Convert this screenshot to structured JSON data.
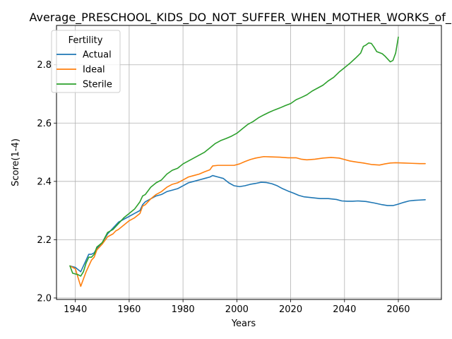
{
  "chart_data": {
    "type": "line",
    "title": "Average_PRESCHOOL_KIDS_DO_NOT_SUFFER_WHEN_MOTHER_WORKS_of_Ma",
    "xlabel": "Years",
    "ylabel": "Score(1-4)",
    "xlim": [
      1933,
      2076
    ],
    "ylim": [
      1.995,
      2.935
    ],
    "xticks": [
      1940,
      1960,
      1980,
      2000,
      2020,
      2040,
      2060
    ],
    "yticks": [
      2.0,
      2.2,
      2.4,
      2.6,
      2.8
    ],
    "grid": true,
    "legend": {
      "title": "Fertility",
      "placement": "top-left"
    },
    "series": [
      {
        "name": "Actual",
        "color": "#1f77b4",
        "points": [
          [
            1938,
            2.11
          ],
          [
            1940,
            2.105
          ],
          [
            1942,
            2.09
          ],
          [
            1943,
            2.11
          ],
          [
            1944,
            2.13
          ],
          [
            1945,
            2.15
          ],
          [
            1946,
            2.15
          ],
          [
            1947,
            2.155
          ],
          [
            1948,
            2.17
          ],
          [
            1950,
            2.19
          ],
          [
            1952,
            2.22
          ],
          [
            1954,
            2.24
          ],
          [
            1956,
            2.26
          ],
          [
            1958,
            2.27
          ],
          [
            1960,
            2.28
          ],
          [
            1962,
            2.29
          ],
          [
            1964,
            2.3
          ],
          [
            1965,
            2.32
          ],
          [
            1966,
            2.33
          ],
          [
            1968,
            2.34
          ],
          [
            1970,
            2.35
          ],
          [
            1972,
            2.355
          ],
          [
            1974,
            2.365
          ],
          [
            1976,
            2.37
          ],
          [
            1978,
            2.375
          ],
          [
            1980,
            2.385
          ],
          [
            1982,
            2.395
          ],
          [
            1984,
            2.4
          ],
          [
            1986,
            2.405
          ],
          [
            1988,
            2.41
          ],
          [
            1990,
            2.415
          ],
          [
            1991,
            2.42
          ],
          [
            1993,
            2.415
          ],
          [
            1995,
            2.41
          ],
          [
            1997,
            2.395
          ],
          [
            1999,
            2.385
          ],
          [
            2001,
            2.382
          ],
          [
            2003,
            2.385
          ],
          [
            2005,
            2.39
          ],
          [
            2007,
            2.393
          ],
          [
            2009,
            2.397
          ],
          [
            2011,
            2.396
          ],
          [
            2013,
            2.392
          ],
          [
            2015,
            2.385
          ],
          [
            2017,
            2.375
          ],
          [
            2019,
            2.367
          ],
          [
            2021,
            2.36
          ],
          [
            2023,
            2.352
          ],
          [
            2025,
            2.347
          ],
          [
            2028,
            2.344
          ],
          [
            2031,
            2.341
          ],
          [
            2034,
            2.341
          ],
          [
            2037,
            2.338
          ],
          [
            2039,
            2.333
          ],
          [
            2041,
            2.332
          ],
          [
            2043,
            2.332
          ],
          [
            2045,
            2.333
          ],
          [
            2048,
            2.331
          ],
          [
            2051,
            2.326
          ],
          [
            2054,
            2.32
          ],
          [
            2056,
            2.317
          ],
          [
            2058,
            2.317
          ],
          [
            2060,
            2.322
          ],
          [
            2062,
            2.328
          ],
          [
            2064,
            2.333
          ],
          [
            2066,
            2.335
          ],
          [
            2068,
            2.336
          ],
          [
            2070,
            2.337
          ]
        ]
      },
      {
        "name": "Ideal",
        "color": "#ff7f0e",
        "points": [
          [
            1938,
            2.11
          ],
          [
            1940,
            2.1
          ],
          [
            1941,
            2.07
          ],
          [
            1942,
            2.04
          ],
          [
            1943,
            2.065
          ],
          [
            1944,
            2.09
          ],
          [
            1946,
            2.13
          ],
          [
            1947,
            2.14
          ],
          [
            1948,
            2.165
          ],
          [
            1950,
            2.185
          ],
          [
            1952,
            2.21
          ],
          [
            1954,
            2.22
          ],
          [
            1955,
            2.23
          ],
          [
            1956,
            2.235
          ],
          [
            1958,
            2.25
          ],
          [
            1960,
            2.265
          ],
          [
            1962,
            2.275
          ],
          [
            1964,
            2.29
          ],
          [
            1965,
            2.315
          ],
          [
            1966,
            2.32
          ],
          [
            1968,
            2.34
          ],
          [
            1970,
            2.355
          ],
          [
            1972,
            2.365
          ],
          [
            1974,
            2.38
          ],
          [
            1976,
            2.39
          ],
          [
            1978,
            2.395
          ],
          [
            1980,
            2.405
          ],
          [
            1982,
            2.415
          ],
          [
            1984,
            2.42
          ],
          [
            1986,
            2.425
          ],
          [
            1988,
            2.433
          ],
          [
            1990,
            2.44
          ],
          [
            1991,
            2.453
          ],
          [
            1993,
            2.455
          ],
          [
            1996,
            2.455
          ],
          [
            1999,
            2.455
          ],
          [
            2001,
            2.46
          ],
          [
            2003,
            2.468
          ],
          [
            2005,
            2.475
          ],
          [
            2007,
            2.48
          ],
          [
            2010,
            2.485
          ],
          [
            2013,
            2.484
          ],
          [
            2016,
            2.483
          ],
          [
            2019,
            2.481
          ],
          [
            2022,
            2.481
          ],
          [
            2024,
            2.476
          ],
          [
            2026,
            2.474
          ],
          [
            2029,
            2.476
          ],
          [
            2032,
            2.48
          ],
          [
            2035,
            2.482
          ],
          [
            2038,
            2.48
          ],
          [
            2040,
            2.475
          ],
          [
            2042,
            2.47
          ],
          [
            2044,
            2.467
          ],
          [
            2047,
            2.463
          ],
          [
            2050,
            2.458
          ],
          [
            2053,
            2.456
          ],
          [
            2055,
            2.46
          ],
          [
            2057,
            2.463
          ],
          [
            2059,
            2.464
          ],
          [
            2062,
            2.463
          ],
          [
            2065,
            2.462
          ],
          [
            2068,
            2.461
          ],
          [
            2070,
            2.461
          ]
        ]
      },
      {
        "name": "Sterile",
        "color": "#2ca02c",
        "points": [
          [
            1938,
            2.11
          ],
          [
            1939,
            2.085
          ],
          [
            1941,
            2.08
          ],
          [
            1942,
            2.075
          ],
          [
            1943,
            2.09
          ],
          [
            1944,
            2.12
          ],
          [
            1945,
            2.14
          ],
          [
            1946,
            2.14
          ],
          [
            1947,
            2.15
          ],
          [
            1948,
            2.175
          ],
          [
            1950,
            2.19
          ],
          [
            1952,
            2.225
          ],
          [
            1954,
            2.235
          ],
          [
            1956,
            2.255
          ],
          [
            1958,
            2.275
          ],
          [
            1960,
            2.29
          ],
          [
            1962,
            2.305
          ],
          [
            1964,
            2.33
          ],
          [
            1965,
            2.35
          ],
          [
            1966,
            2.355
          ],
          [
            1968,
            2.38
          ],
          [
            1970,
            2.395
          ],
          [
            1972,
            2.405
          ],
          [
            1974,
            2.425
          ],
          [
            1976,
            2.438
          ],
          [
            1978,
            2.445
          ],
          [
            1980,
            2.46
          ],
          [
            1982,
            2.47
          ],
          [
            1984,
            2.48
          ],
          [
            1986,
            2.49
          ],
          [
            1988,
            2.5
          ],
          [
            1990,
            2.515
          ],
          [
            1992,
            2.53
          ],
          [
            1994,
            2.54
          ],
          [
            1996,
            2.547
          ],
          [
            1998,
            2.555
          ],
          [
            2000,
            2.565
          ],
          [
            2002,
            2.58
          ],
          [
            2004,
            2.595
          ],
          [
            2006,
            2.605
          ],
          [
            2008,
            2.618
          ],
          [
            2010,
            2.628
          ],
          [
            2012,
            2.637
          ],
          [
            2014,
            2.645
          ],
          [
            2016,
            2.652
          ],
          [
            2018,
            2.66
          ],
          [
            2020,
            2.667
          ],
          [
            2022,
            2.68
          ],
          [
            2024,
            2.688
          ],
          [
            2026,
            2.697
          ],
          [
            2028,
            2.71
          ],
          [
            2030,
            2.72
          ],
          [
            2032,
            2.73
          ],
          [
            2034,
            2.745
          ],
          [
            2036,
            2.757
          ],
          [
            2038,
            2.775
          ],
          [
            2040,
            2.79
          ],
          [
            2042,
            2.805
          ],
          [
            2044,
            2.822
          ],
          [
            2046,
            2.84
          ],
          [
            2047,
            2.863
          ],
          [
            2048,
            2.868
          ],
          [
            2049,
            2.875
          ],
          [
            2050,
            2.873
          ],
          [
            2051,
            2.86
          ],
          [
            2052,
            2.845
          ],
          [
            2054,
            2.838
          ],
          [
            2055,
            2.83
          ],
          [
            2056,
            2.82
          ],
          [
            2057,
            2.81
          ],
          [
            2058,
            2.815
          ],
          [
            2059,
            2.84
          ],
          [
            2060,
            2.895
          ]
        ]
      }
    ]
  }
}
